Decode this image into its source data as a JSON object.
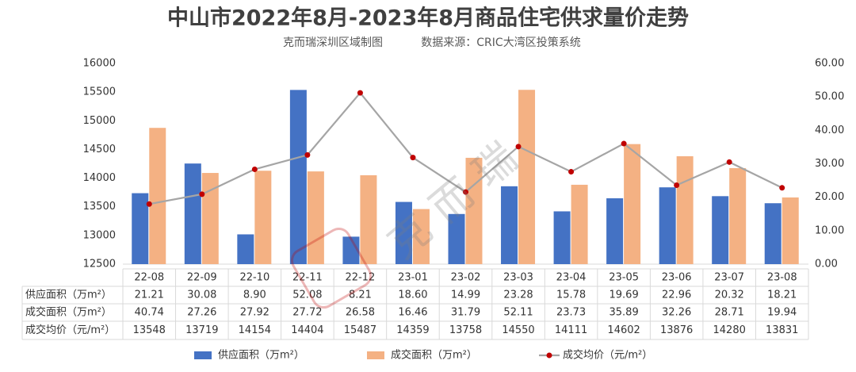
{
  "chart_data": {
    "type": "bar-line",
    "title": "中山市2022年8月-2023年8月商品住宅供求量价走势",
    "subtitle": "克而瑞深圳区域制图",
    "source": "数据来源：CRIC大湾区投策系统",
    "watermark": "克而瑞",
    "categories": [
      "22-08",
      "22-09",
      "22-10",
      "22-11",
      "22-12",
      "23-01",
      "23-02",
      "23-03",
      "23-04",
      "23-05",
      "23-06",
      "23-07",
      "23-08"
    ],
    "series": [
      {
        "name": "供应面积（万m²）",
        "type": "bar",
        "axis": "y2",
        "color": "#4472c4",
        "values": [
          21.21,
          30.08,
          8.9,
          52.08,
          8.21,
          18.6,
          14.99,
          23.28,
          15.78,
          19.69,
          22.96,
          20.32,
          18.21
        ],
        "value_labels": [
          "21.21",
          "30.08",
          "8.90",
          "52.08",
          "8.21",
          "18.60",
          "14.99",
          "23.28",
          "15.78",
          "19.69",
          "22.96",
          "20.32",
          "18.21"
        ]
      },
      {
        "name": "成交面积（万m²）",
        "type": "bar",
        "axis": "y2",
        "color": "#f4b183",
        "values": [
          40.74,
          27.26,
          27.92,
          27.72,
          26.58,
          16.46,
          31.79,
          52.11,
          23.73,
          35.89,
          32.26,
          28.71,
          19.94
        ],
        "value_labels": [
          "40.74",
          "27.26",
          "27.92",
          "27.72",
          "26.58",
          "16.46",
          "31.79",
          "52.11",
          "23.73",
          "35.89",
          "32.26",
          "28.71",
          "19.94"
        ]
      },
      {
        "name": "成交均价（元/m²）",
        "type": "line",
        "color": "#a5a5a5",
        "marker_color": "#c00000",
        "values": [
          13548,
          13719,
          14154,
          14404,
          15487,
          14359,
          13758,
          14550,
          14111,
          14602,
          13876,
          14280,
          13831
        ]
      }
    ],
    "ylim": [
      12500,
      16000
    ],
    "yticks": [
      12500,
      13000,
      13500,
      14000,
      14500,
      15000,
      15500,
      16000
    ],
    "y2lim": [
      0,
      60
    ],
    "y2ticks": [
      {
        "value": 0,
        "label": "0.00"
      },
      {
        "value": 10,
        "label": "10.00"
      },
      {
        "value": 20,
        "label": "20.00"
      },
      {
        "value": 30,
        "label": "30.00"
      },
      {
        "value": 40,
        "label": "40.00"
      },
      {
        "value": 50,
        "label": "50.00"
      },
      {
        "value": 60,
        "label": "60.00"
      }
    ],
    "grid": false
  }
}
